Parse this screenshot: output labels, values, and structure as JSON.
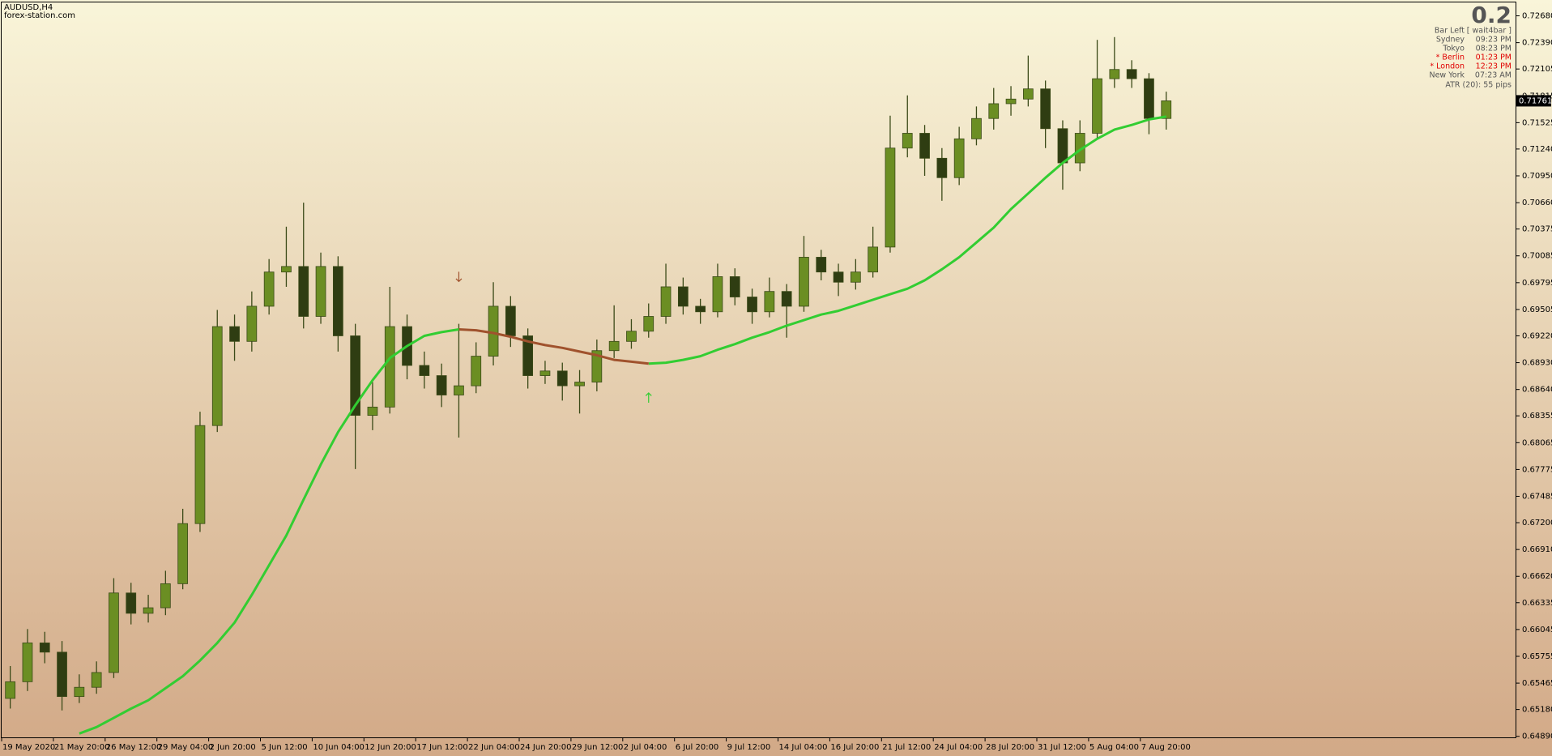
{
  "header": {
    "symbol": "AUDUSD,H4",
    "source": "forex-station.com"
  },
  "info_panel": {
    "countdown": "0.2",
    "rows": [
      {
        "label": "Bar Left",
        "value": "[ wait4bar ]",
        "color": "#555555"
      },
      {
        "label": "Sydney",
        "value": "09:23 PM",
        "color": "#555555"
      },
      {
        "label": "Tokyo",
        "value": "08:23 PM",
        "color": "#555555"
      },
      {
        "label": "* Berlin",
        "value": "01:23 PM",
        "color": "#e00000"
      },
      {
        "label": "* London",
        "value": "12:23 PM",
        "color": "#e00000"
      },
      {
        "label": "New York",
        "value": "07:23 AM",
        "color": "#555555"
      }
    ],
    "atr": "ATR (20): 55 pips"
  },
  "chart_data": {
    "type": "candlestick",
    "ylim": [
      0.6487,
      0.7283
    ],
    "yticks": [
      {
        "value": 0.7268,
        "label": "0.72680"
      },
      {
        "value": 0.7239,
        "label": "0.72390"
      },
      0.72105,
      0.71815,
      0.71525,
      {
        "value": 0.7124,
        "label": "0.71240"
      },
      {
        "value": 0.7095,
        "label": "0.70950"
      },
      {
        "value": 0.7066,
        "label": "0.70660"
      },
      0.70375,
      0.70085,
      0.69795,
      0.69505,
      {
        "value": 0.6922,
        "label": "0.69220"
      },
      {
        "value": 0.6893,
        "label": "0.68930"
      },
      {
        "value": 0.6864,
        "label": "0.68640"
      },
      0.68355,
      0.68065,
      0.67775,
      0.67485,
      {
        "value": 0.672,
        "label": "0.67200"
      },
      {
        "value": 0.6691,
        "label": "0.66910"
      },
      {
        "value": 0.6662,
        "label": "0.66620"
      },
      0.66335,
      0.66045,
      0.65755,
      0.65465,
      {
        "value": 0.6518,
        "label": "0.65180"
      },
      {
        "value": 0.6489,
        "label": "0.64890"
      }
    ],
    "x_labels": [
      "19 May 2020",
      "21 May 20:00",
      "26 May 12:00",
      "29 May 04:00",
      "2 Jun 20:00",
      "5 Jun 12:00",
      "10 Jun 04:00",
      "12 Jun 20:00",
      "17 Jun 12:00",
      "22 Jun 04:00",
      "24 Jun 20:00",
      "29 Jun 12:00",
      "2 Jul 04:00",
      "6 Jul 20:00",
      "9 Jul 12:00",
      "14 Jul 04:00",
      "16 Jul 20:00",
      "21 Jul 12:00",
      "24 Jul 04:00",
      "28 Jul 20:00",
      "31 Jul 12:00",
      "5 Aug 04:00",
      "7 Aug 20:00"
    ],
    "up_color": "#6b8e23",
    "down_color": "#2f3d12",
    "wick_color": "#3b4a18",
    "open": [
      0.653,
      0.6548,
      0.659,
      0.658,
      0.6532,
      0.6542,
      0.6558,
      0.6644,
      0.6622,
      0.6628,
      0.6654,
      0.6719,
      0.6825,
      0.6932,
      0.6916,
      0.6954,
      0.6991,
      0.6997,
      0.6943,
      0.6997,
      0.6922,
      0.6836,
      0.6845,
      0.6932,
      0.689,
      0.6879,
      0.6858,
      0.6868,
      0.69,
      0.6954,
      0.6922,
      0.6879,
      0.6884,
      0.6868,
      0.6872,
      0.6906,
      0.6916,
      0.6927,
      0.6943,
      0.6975,
      0.6954,
      0.6948,
      0.6986,
      0.6964,
      0.6948,
      0.697,
      0.6954,
      0.7007,
      0.6991,
      0.698,
      0.6991,
      0.7018,
      0.7125,
      0.7141,
      0.7114,
      0.7093,
      0.7135,
      0.7157,
      0.7173,
      0.7178,
      0.7189,
      0.7146,
      0.7109,
      0.7141,
      0.72,
      0.721,
      0.72,
      0.7157
    ],
    "high": [
      0.6565,
      0.6605,
      0.6602,
      0.6592,
      0.6556,
      0.657,
      0.666,
      0.6655,
      0.6642,
      0.6668,
      0.6735,
      0.684,
      0.695,
      0.6945,
      0.697,
      0.7005,
      0.704,
      0.7066,
      0.7012,
      0.7008,
      0.6935,
      0.6872,
      0.6975,
      0.6945,
      0.6905,
      0.6892,
      0.6935,
      0.6915,
      0.698,
      0.6965,
      0.693,
      0.6895,
      0.6893,
      0.6885,
      0.6918,
      0.6955,
      0.694,
      0.6957,
      0.7,
      0.6985,
      0.6962,
      0.7,
      0.6995,
      0.6973,
      0.6985,
      0.6978,
      0.703,
      0.7015,
      0.7,
      0.7005,
      0.704,
      0.716,
      0.7182,
      0.715,
      0.7125,
      0.7148,
      0.717,
      0.719,
      0.7192,
      0.7225,
      0.7198,
      0.7155,
      0.7155,
      0.7242,
      0.7245,
      0.722,
      0.7206,
      0.7186
    ],
    "low": [
      0.6519,
      0.6538,
      0.6568,
      0.6517,
      0.6525,
      0.6535,
      0.6552,
      0.661,
      0.6612,
      0.662,
      0.6648,
      0.671,
      0.6818,
      0.6895,
      0.6905,
      0.6945,
      0.6975,
      0.693,
      0.6935,
      0.6905,
      0.6778,
      0.682,
      0.6838,
      0.6875,
      0.6865,
      0.6845,
      0.6812,
      0.686,
      0.689,
      0.691,
      0.6865,
      0.687,
      0.6852,
      0.6838,
      0.6862,
      0.6898,
      0.6908,
      0.692,
      0.6935,
      0.6945,
      0.6935,
      0.6942,
      0.6955,
      0.6935,
      0.6942,
      0.692,
      0.6948,
      0.6982,
      0.6965,
      0.6972,
      0.6985,
      0.7012,
      0.7115,
      0.7095,
      0.7068,
      0.7085,
      0.7128,
      0.7145,
      0.716,
      0.717,
      0.7125,
      0.708,
      0.71,
      0.7135,
      0.719,
      0.719,
      0.714,
      0.7145
    ],
    "close": [
      0.6548,
      0.659,
      0.658,
      0.6532,
      0.6542,
      0.6558,
      0.6644,
      0.6622,
      0.6628,
      0.6654,
      0.6719,
      0.6825,
      0.6932,
      0.6916,
      0.6954,
      0.6991,
      0.6997,
      0.6943,
      0.6997,
      0.6922,
      0.6836,
      0.6845,
      0.6932,
      0.689,
      0.6879,
      0.6858,
      0.6868,
      0.69,
      0.6954,
      0.6922,
      0.6879,
      0.6884,
      0.6868,
      0.6872,
      0.6906,
      0.6916,
      0.6927,
      0.6943,
      0.6975,
      0.6954,
      0.6948,
      0.6986,
      0.6964,
      0.6948,
      0.697,
      0.6954,
      0.7007,
      0.6991,
      0.698,
      0.6991,
      0.7018,
      0.7125,
      0.7141,
      0.7114,
      0.7093,
      0.7135,
      0.7157,
      0.7173,
      0.7178,
      0.7189,
      0.7146,
      0.7109,
      0.7141,
      0.72,
      0.721,
      0.72,
      0.7157,
      0.71761
    ],
    "lines": [
      {
        "color": "#32cd32",
        "values": [
          null,
          null,
          null,
          null,
          0.6492,
          0.6499,
          0.6509,
          0.6519,
          0.6528,
          0.6541,
          0.6554,
          0.6571,
          0.659,
          0.6612,
          0.6642,
          0.6674,
          0.6706,
          0.6745,
          0.6783,
          0.6818,
          0.6847,
          0.6874,
          0.6898,
          0.6911,
          0.6922,
          0.6926,
          0.6929,
          null,
          null,
          null,
          null,
          null,
          null,
          null,
          null,
          null,
          null,
          0.6892,
          0.6893,
          0.6896,
          0.69,
          0.6907,
          0.6913,
          0.692,
          0.6926,
          0.6933,
          0.6939,
          0.6945,
          0.6949,
          0.6955,
          0.6961,
          0.6967,
          0.6973,
          0.6982,
          0.6994,
          0.7007,
          0.7023,
          0.7039,
          0.7059,
          0.7076,
          0.7093,
          0.7109,
          0.7123,
          0.7135,
          0.7145,
          0.715,
          0.7156,
          0.7159
        ]
      },
      {
        "color": "#a0522d",
        "values": [
          null,
          null,
          null,
          null,
          null,
          null,
          null,
          null,
          null,
          null,
          null,
          null,
          null,
          null,
          null,
          null,
          null,
          null,
          null,
          null,
          null,
          null,
          null,
          null,
          null,
          null,
          0.6929,
          0.6928,
          0.6925,
          0.6921,
          0.6916,
          0.6912,
          0.6909,
          0.6905,
          0.6901,
          0.6896,
          0.6894,
          0.6892,
          null,
          null,
          null,
          null,
          null,
          null,
          null,
          null,
          null,
          null,
          null,
          null,
          null,
          null,
          null,
          null,
          null,
          null,
          null,
          null,
          null,
          null,
          null,
          null,
          null,
          null,
          null,
          null,
          null,
          null
        ]
      }
    ],
    "signals": [
      {
        "index": 26,
        "value": 0.6986,
        "direction": "down",
        "color": "#a0522d"
      },
      {
        "index": 37,
        "value": 0.6855,
        "direction": "up",
        "color": "#32cd32"
      }
    ],
    "last_price": 0.71761
  }
}
